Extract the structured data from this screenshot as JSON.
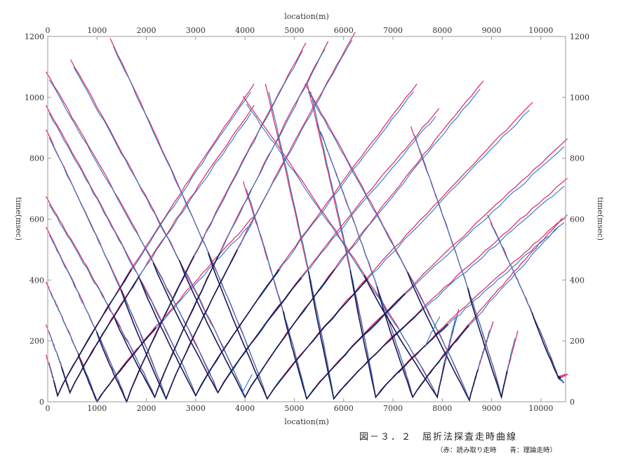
{
  "chart_data": {
    "type": "line",
    "title": "図－３．２　屈折法探査走時曲線",
    "subtitle": "（赤：読み取り走時　　青：理論走時）",
    "xlabel": "location(m)",
    "ylabel": "time(msec)",
    "xlim": [
      0,
      10500
    ],
    "ylim": [
      0,
      1200
    ],
    "x_ticks": [
      0,
      1000,
      2000,
      3000,
      4000,
      5000,
      6000,
      7000,
      8000,
      9000,
      10000
    ],
    "y_ticks": [
      0,
      200,
      400,
      600,
      800,
      1000,
      1200
    ],
    "grid": false,
    "legend": "none",
    "colors": {
      "picked": "#e0306e",
      "theoretical": "#2878c0",
      "overlap": "#1a1650"
    },
    "shots": [
      {
        "x": 200,
        "y": 20,
        "left_end": [
          0,
          140
        ],
        "right_end": [
          4150,
          1030
        ]
      },
      {
        "x": 450,
        "y": 30,
        "left_end": [
          0,
          240
        ],
        "right_end": [
          4150,
          960
        ]
      },
      {
        "x": 1000,
        "y": 0,
        "left_end": [
          0,
          380
        ],
        "right_end": [
          4150,
          595
        ]
      },
      {
        "x": 1600,
        "y": 0,
        "left_end": [
          0,
          560
        ],
        "right_end": [
          5200,
          1165
        ]
      },
      {
        "x": 2170,
        "y": 15,
        "left_end": [
          0,
          660
        ],
        "right_end": [
          5650,
          1170
        ]
      },
      {
        "x": 2400,
        "y": 10,
        "left_end": [
          0,
          880
        ],
        "right_end": [
          6200,
          1200
        ]
      },
      {
        "x": 3000,
        "y": 20,
        "left_end": [
          0,
          960
        ],
        "right_end": [
          7450,
          1030
        ]
      },
      {
        "x": 3450,
        "y": 30,
        "left_end": [
          0,
          1070
        ],
        "right_end": [
          7900,
          950
        ]
      },
      {
        "x": 4000,
        "y": 15,
        "left_end": [
          500,
          1110
        ],
        "right_end": [
          8800,
          1040
        ]
      },
      {
        "x": 4450,
        "y": 10,
        "left_end": [
          1300,
          1180
        ],
        "right_end": [
          9800,
          970
        ]
      },
      {
        "x": 5250,
        "y": 10,
        "left_end": [
          4000,
          710
        ],
        "right_end": [
          10500,
          850
        ]
      },
      {
        "x": 5800,
        "y": 10,
        "left_end": [
          4450,
          1030
        ],
        "right_end": [
          10500,
          720
        ]
      },
      {
        "x": 6650,
        "y": 15,
        "left_end": [
          5300,
          1030
        ],
        "right_end": [
          10500,
          600
        ]
      },
      {
        "x": 7400,
        "y": 15,
        "left_end": [
          5500,
          900
        ],
        "right_end": [
          10400,
          590
        ]
      },
      {
        "x": 7900,
        "y": 15,
        "left_end": [
          4000,
          990
        ],
        "right_end": [
          8300,
          290
        ]
      },
      {
        "x": 8550,
        "y": 5,
        "left_end": [
          5250,
          1030
        ],
        "right_end": [
          9000,
          250
        ]
      },
      {
        "x": 9200,
        "y": 15,
        "left_end": [
          7400,
          890
        ],
        "right_end": [
          9500,
          220
        ]
      },
      {
        "x": 10350,
        "y": 80,
        "left_end": [
          8950,
          600
        ],
        "right_end": [
          10500,
          75
        ]
      }
    ],
    "extra_segments": [
      {
        "from": [
          3950,
          30
        ],
        "to": [
          4150,
          90
        ]
      },
      {
        "from": [
          7650,
          180
        ],
        "to": [
          7950,
          280
        ]
      },
      {
        "from": [
          8000,
          100
        ],
        "to": [
          8300,
          280
        ]
      }
    ]
  }
}
